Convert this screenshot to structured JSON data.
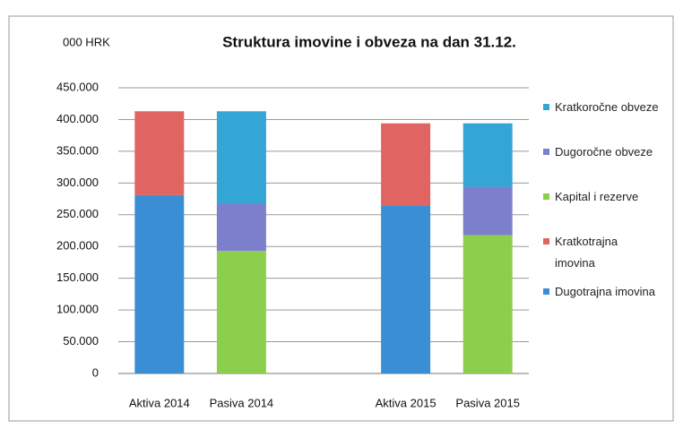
{
  "chart_data": {
    "type": "stacked_bar",
    "title": "Struktura imovine i obveza na dan 31.12.",
    "y_unit": "000 HRK",
    "categories": [
      "Aktiva 2014",
      "Pasiva 2014",
      null,
      "Aktiva 2015",
      "Pasiva 2015"
    ],
    "series": [
      {
        "name": "Dugotrajna imovina",
        "color": "#3a8fd4",
        "values": [
          281000,
          null,
          null,
          265000,
          null
        ]
      },
      {
        "name": "Kratkotrajna imovina",
        "color": "#e06462",
        "values": [
          132000,
          null,
          null,
          129000,
          null
        ]
      },
      {
        "name": "Kapital i rezerve",
        "color": "#8ccf4d",
        "values": [
          null,
          193000,
          null,
          null,
          218000
        ]
      },
      {
        "name": "Dugoročne obveze",
        "color": "#7c7fcc",
        "values": [
          null,
          75000,
          null,
          null,
          76000
        ]
      },
      {
        "name": "Kratkoročne obveze",
        "color": "#33a6d6",
        "values": [
          null,
          145000,
          null,
          null,
          100000
        ]
      }
    ],
    "ylim": [
      0,
      450000
    ],
    "yticks": [
      0,
      {
        "value": 50000,
        "label": "50.000"
      },
      {
        "value": 100000,
        "label": "100.000"
      },
      {
        "value": 150000,
        "label": "150.000"
      },
      {
        "value": 200000,
        "label": "200.000"
      },
      {
        "value": 250000,
        "label": "250.000"
      },
      {
        "value": 300000,
        "label": "300.000"
      },
      {
        "value": 350000,
        "label": "350.000"
      },
      {
        "value": 400000,
        "label": "400.000"
      },
      {
        "value": 450000,
        "label": "450.000"
      }
    ],
    "grid": true,
    "legend": "right"
  }
}
